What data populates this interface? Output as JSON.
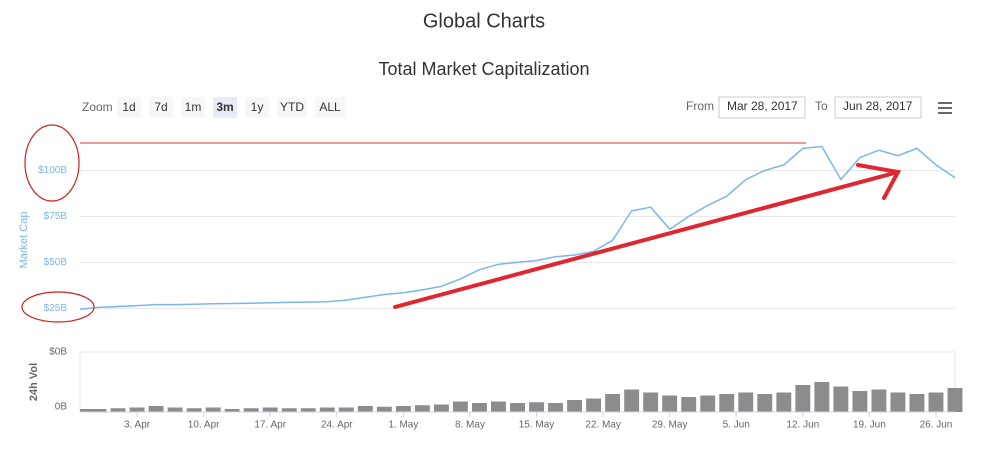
{
  "chart_data": [
    {
      "type": "line",
      "title": "Global Charts",
      "subtitle": "Total Market Capitalization",
      "ylabel": "Market Cap",
      "xlim": [
        "2017-03-28",
        "2017-06-28"
      ],
      "ylim": [
        23,
        122
      ],
      "yticks": [
        {
          "value": 25,
          "label": "$25B"
        },
        {
          "value": 50,
          "label": "$50B"
        },
        {
          "value": 75,
          "label": "$75B"
        },
        {
          "value": 100,
          "label": "$100B"
        }
      ],
      "grid": true,
      "x": [
        "2017-03-28",
        "2017-03-30",
        "2017-04-01",
        "2017-04-03",
        "2017-04-05",
        "2017-04-07",
        "2017-04-09",
        "2017-04-11",
        "2017-04-13",
        "2017-04-15",
        "2017-04-17",
        "2017-04-19",
        "2017-04-21",
        "2017-04-23",
        "2017-04-25",
        "2017-04-27",
        "2017-04-29",
        "2017-05-01",
        "2017-05-03",
        "2017-05-05",
        "2017-05-07",
        "2017-05-09",
        "2017-05-11",
        "2017-05-13",
        "2017-05-15",
        "2017-05-17",
        "2017-05-19",
        "2017-05-21",
        "2017-05-23",
        "2017-05-25",
        "2017-05-27",
        "2017-05-29",
        "2017-05-31",
        "2017-06-02",
        "2017-06-04",
        "2017-06-06",
        "2017-06-08",
        "2017-06-10",
        "2017-06-12",
        "2017-06-14",
        "2017-06-16",
        "2017-06-18",
        "2017-06-20",
        "2017-06-22",
        "2017-06-24",
        "2017-06-26",
        "2017-06-28"
      ],
      "series": [
        {
          "name": "Market Cap",
          "color": "#7cb5ec",
          "values": [
            24.5,
            25.5,
            26,
            26.5,
            27,
            27,
            27.2,
            27.5,
            27.6,
            27.8,
            28,
            28.2,
            28.4,
            28.6,
            29.5,
            31,
            32.5,
            33.5,
            35,
            37,
            41,
            46,
            49,
            50,
            51,
            53,
            54,
            56,
            62,
            78,
            80,
            68,
            75,
            81,
            86,
            95,
            100,
            103,
            112,
            113,
            95,
            107,
            111,
            108,
            112,
            103,
            96
          ]
        }
      ]
    },
    {
      "type": "bar",
      "ylabel": "24h Vol",
      "xlim": [
        "2017-03-28",
        "2017-06-28"
      ],
      "ylim": [
        0,
        0.4
      ],
      "yticks": [
        {
          "value": 0.4,
          "label": "$0B"
        },
        {
          "value": 0,
          "label": "0B"
        }
      ],
      "xticks": [
        {
          "value": "2017-04-03",
          "label": "3. Apr"
        },
        {
          "value": "2017-04-10",
          "label": "10. Apr"
        },
        {
          "value": "2017-04-17",
          "label": "17. Apr"
        },
        {
          "value": "2017-04-24",
          "label": "24. Apr"
        },
        {
          "value": "2017-05-01",
          "label": "1. May"
        },
        {
          "value": "2017-05-08",
          "label": "8. May"
        },
        {
          "value": "2017-05-15",
          "label": "15. May"
        },
        {
          "value": "2017-05-22",
          "label": "22. May"
        },
        {
          "value": "2017-05-29",
          "label": "29. May"
        },
        {
          "value": "2017-06-05",
          "label": "5. Jun"
        },
        {
          "value": "2017-06-12",
          "label": "12. Jun"
        },
        {
          "value": "2017-06-19",
          "label": "19. Jun"
        },
        {
          "value": "2017-06-26",
          "label": "26. Jun"
        }
      ],
      "x": [
        "2017-03-28",
        "2017-03-30",
        "2017-04-01",
        "2017-04-03",
        "2017-04-05",
        "2017-04-07",
        "2017-04-09",
        "2017-04-11",
        "2017-04-13",
        "2017-04-15",
        "2017-04-17",
        "2017-04-19",
        "2017-04-21",
        "2017-04-23",
        "2017-04-25",
        "2017-04-27",
        "2017-04-29",
        "2017-05-01",
        "2017-05-03",
        "2017-05-05",
        "2017-05-07",
        "2017-05-09",
        "2017-05-11",
        "2017-05-13",
        "2017-05-15",
        "2017-05-17",
        "2017-05-19",
        "2017-05-21",
        "2017-05-23",
        "2017-05-25",
        "2017-05-27",
        "2017-05-29",
        "2017-05-31",
        "2017-06-02",
        "2017-06-04",
        "2017-06-06",
        "2017-06-08",
        "2017-06-10",
        "2017-06-12",
        "2017-06-14",
        "2017-06-16",
        "2017-06-18",
        "2017-06-20",
        "2017-06-22",
        "2017-06-24",
        "2017-06-26",
        "2017-06-28"
      ],
      "series": [
        {
          "name": "24h Vol",
          "color": "#8c8c8c",
          "values": [
            0.02,
            0.02,
            0.025,
            0.03,
            0.04,
            0.03,
            0.025,
            0.03,
            0.02,
            0.025,
            0.03,
            0.025,
            0.025,
            0.03,
            0.03,
            0.04,
            0.035,
            0.04,
            0.045,
            0.05,
            0.07,
            0.06,
            0.07,
            0.06,
            0.065,
            0.06,
            0.08,
            0.09,
            0.12,
            0.15,
            0.13,
            0.11,
            0.1,
            0.11,
            0.12,
            0.13,
            0.12,
            0.13,
            0.18,
            0.2,
            0.17,
            0.14,
            0.15,
            0.13,
            0.12,
            0.13,
            0.16
          ]
        }
      ]
    }
  ],
  "controls": {
    "zoom_label": "Zoom",
    "zoom_options": [
      "1d",
      "7d",
      "1m",
      "3m",
      "1y",
      "YTD",
      "ALL"
    ],
    "selected": 3,
    "from_label": "From",
    "from_value": "Mar 28, 2017",
    "to_label": "To",
    "to_value": "Jun 28, 2017"
  }
}
